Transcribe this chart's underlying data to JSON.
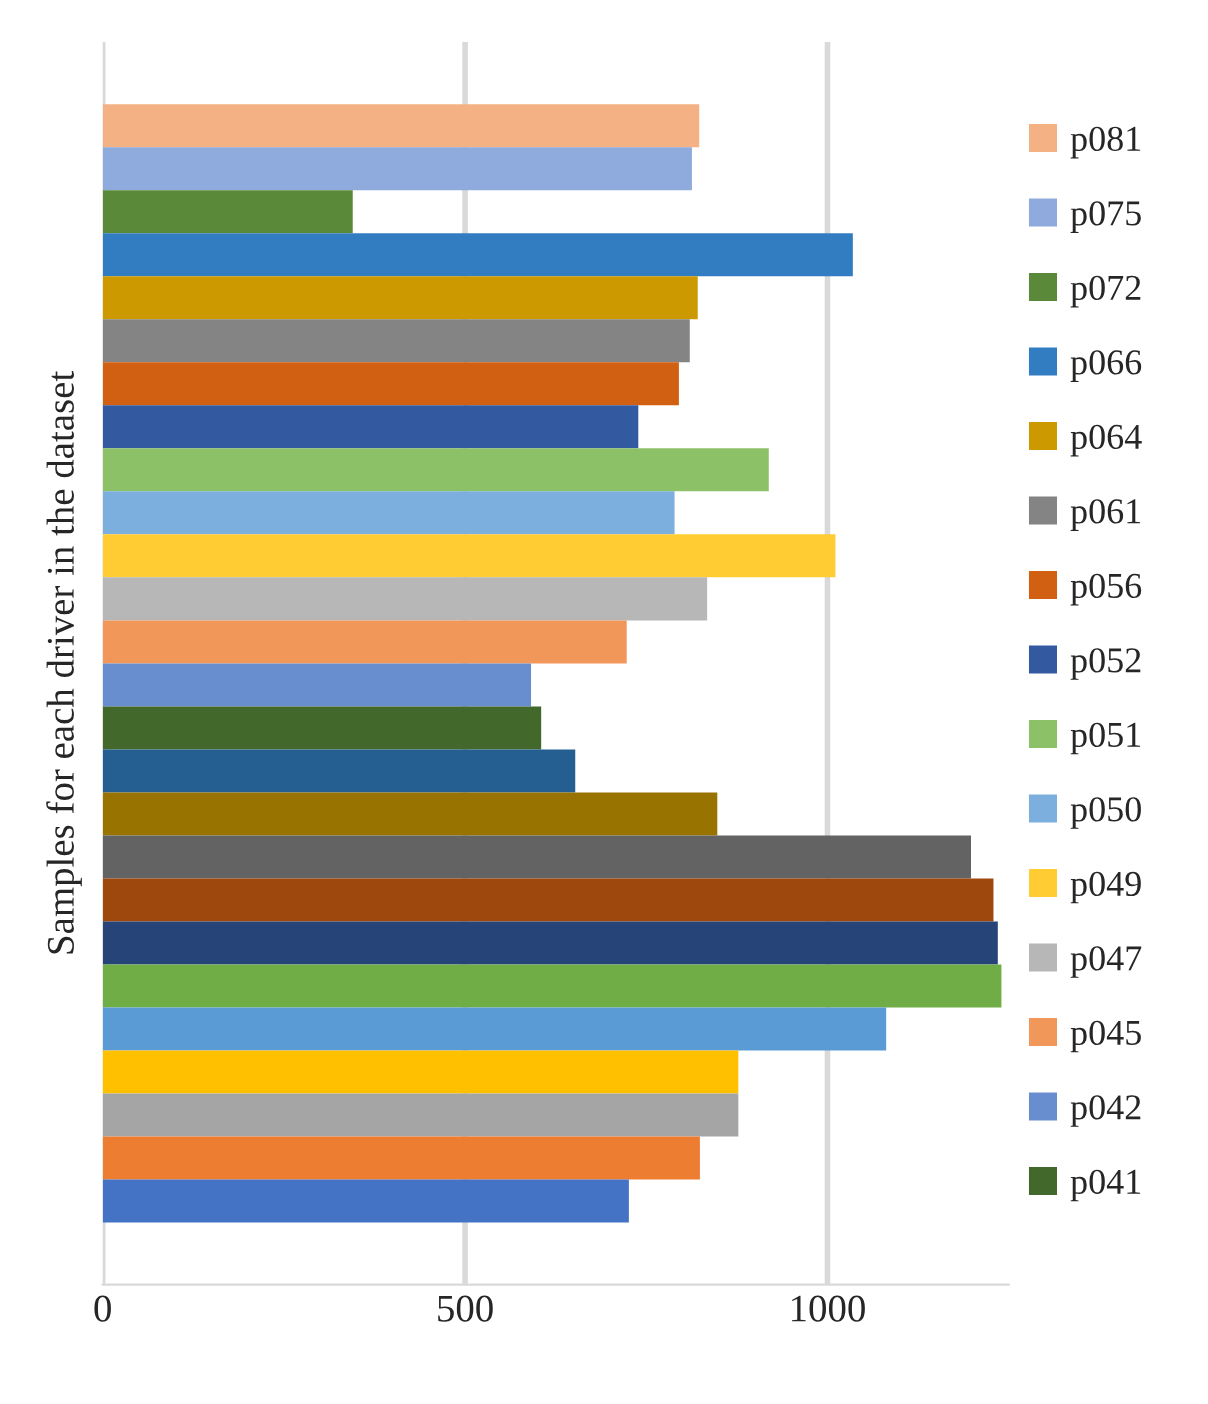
{
  "chart_data": {
    "type": "bar",
    "orientation": "horizontal",
    "ylabel": "Samples for each driver in the dataset",
    "categories": [
      null
    ],
    "series": [
      {
        "name": "p081",
        "color": "#f4b183",
        "values": [
          823
        ]
      },
      {
        "name": "p075",
        "color": "#8faadc",
        "values": [
          813
        ]
      },
      {
        "name": "p072",
        "color": "#5a8a39",
        "values": [
          345
        ]
      },
      {
        "name": "p066",
        "color": "#327dc2",
        "values": [
          1035
        ]
      },
      {
        "name": "p064",
        "color": "#cc9a00",
        "values": [
          821
        ]
      },
      {
        "name": "p061",
        "color": "#848484",
        "values": [
          810
        ]
      },
      {
        "name": "p056",
        "color": "#d26012",
        "values": [
          795
        ]
      },
      {
        "name": "p052",
        "color": "#335aa1",
        "values": [
          739
        ]
      },
      {
        "name": "p051",
        "color": "#8cc168",
        "values": [
          919
        ]
      },
      {
        "name": "p050",
        "color": "#7cafdd",
        "values": [
          789
        ]
      },
      {
        "name": "p049",
        "color": "#ffcd33",
        "values": [
          1011
        ]
      },
      {
        "name": "p047",
        "color": "#b7b7b7",
        "values": [
          834
        ]
      },
      {
        "name": "p045",
        "color": "#f1975a",
        "values": [
          723
        ]
      },
      {
        "name": "p042",
        "color": "#698ed0",
        "values": [
          591
        ]
      },
      {
        "name": "p041",
        "color": "#43682b",
        "values": [
          605
        ]
      },
      {
        "color": "#255e91",
        "values": [
          652
        ]
      },
      {
        "color": "#997300",
        "values": [
          848
        ]
      },
      {
        "color": "#636363",
        "values": [
          1198
        ]
      },
      {
        "color": "#9e480e",
        "values": [
          1229
        ]
      },
      {
        "color": "#264478",
        "values": [
          1235
        ]
      },
      {
        "color": "#70ad47",
        "values": [
          1240
        ]
      },
      {
        "color": "#5b9bd5",
        "values": [
          1081
        ]
      },
      {
        "color": "#ffc000",
        "values": [
          877
        ]
      },
      {
        "color": "#a5a5a5",
        "values": [
          877
        ]
      },
      {
        "color": "#ed7d31",
        "values": [
          824
        ]
      },
      {
        "color": "#4472c4",
        "values": [
          726
        ]
      }
    ],
    "xlim": [
      0,
      1250
    ],
    "xticks": [
      0,
      500,
      1000
    ],
    "grid": "x",
    "legend": "right"
  }
}
